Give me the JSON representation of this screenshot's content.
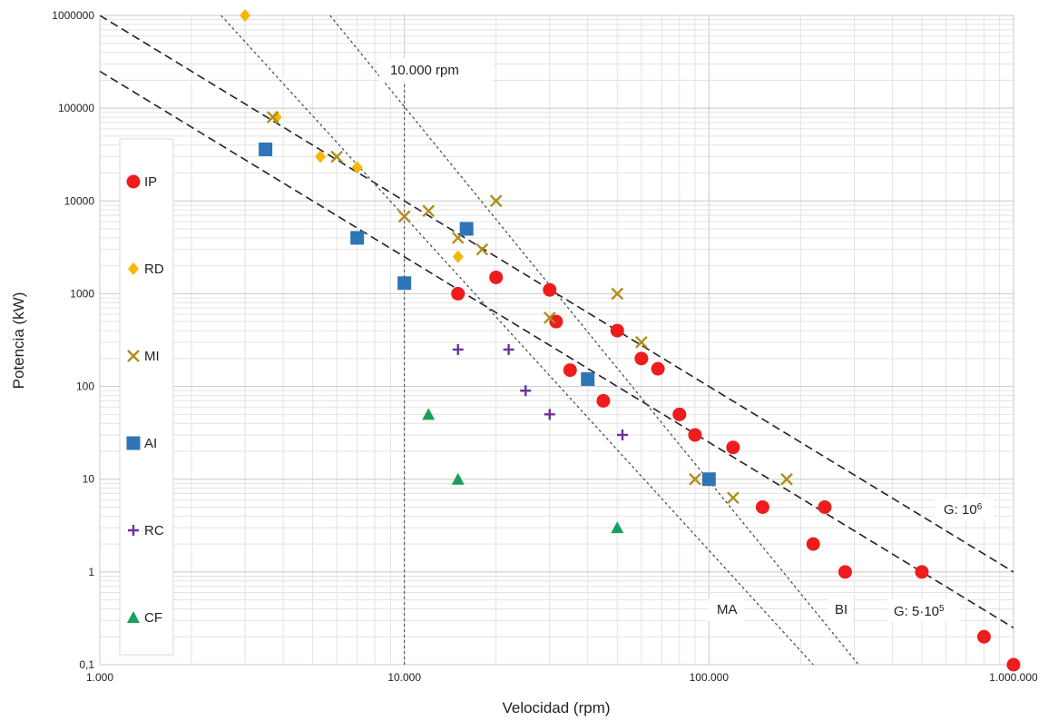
{
  "chart_data": {
    "type": "scatter",
    "x_scale": "log",
    "y_scale": "log",
    "xlabel": "Velocidad (rpm)",
    "ylabel": "Potencia (kW)",
    "xlim": [
      1000,
      1000000
    ],
    "ylim": [
      0.1,
      1000000
    ],
    "x_ticks": [
      {
        "value": 1000,
        "label": "1.000"
      },
      {
        "value": 10000,
        "label": "10.000"
      },
      {
        "value": 100000,
        "label": "100.000"
      },
      {
        "value": 1000000,
        "label": "1.000.000"
      }
    ],
    "y_ticks": [
      {
        "value": 0.1,
        "label": "0,1"
      },
      {
        "value": 1,
        "label": "1"
      },
      {
        "value": 10,
        "label": "10"
      },
      {
        "value": 100,
        "label": "100"
      },
      {
        "value": 1000,
        "label": "1000"
      },
      {
        "value": 10000,
        "label": "10000"
      },
      {
        "value": 100000,
        "label": "100000"
      },
      {
        "value": 1000000,
        "label": "1000000"
      }
    ],
    "grid": true,
    "legend_position": "left",
    "series": [
      {
        "name": "IP",
        "marker": "circle",
        "color": "#ee1c1c",
        "points": [
          [
            15000,
            1000
          ],
          [
            20000,
            1500
          ],
          [
            30000,
            1100
          ],
          [
            31500,
            500
          ],
          [
            35000,
            150
          ],
          [
            45000,
            70
          ],
          [
            50000,
            400
          ],
          [
            60000,
            200
          ],
          [
            68000,
            155
          ],
          [
            80000,
            50
          ],
          [
            90000,
            30
          ],
          [
            120000,
            22
          ],
          [
            150000,
            5
          ],
          [
            220000,
            2
          ],
          [
            240000,
            5
          ],
          [
            280000,
            1
          ],
          [
            500000,
            1
          ],
          [
            800000,
            0.2
          ],
          [
            1000000,
            0.1
          ]
        ]
      },
      {
        "name": "RD",
        "marker": "diamond",
        "color": "#f5b700",
        "points": [
          [
            3000,
            1000000
          ],
          [
            3800,
            80000
          ],
          [
            5300,
            30000
          ],
          [
            7000,
            23000
          ],
          [
            15000,
            2500
          ]
        ]
      },
      {
        "name": "MI",
        "marker": "x",
        "color": "#b08d1c",
        "points": [
          [
            3700,
            80000
          ],
          [
            6000,
            30000
          ],
          [
            10000,
            6800
          ],
          [
            12000,
            7800
          ],
          [
            15000,
            4000
          ],
          [
            18000,
            3000
          ],
          [
            20000,
            10000
          ],
          [
            30000,
            550
          ],
          [
            50000,
            1000
          ],
          [
            60000,
            300
          ],
          [
            90000,
            10
          ],
          [
            120000,
            6.3
          ],
          [
            180000,
            10
          ]
        ]
      },
      {
        "name": "AI",
        "marker": "square",
        "color": "#2e75b6",
        "points": [
          [
            3500,
            36000
          ],
          [
            7000,
            4000
          ],
          [
            10000,
            1300
          ],
          [
            16000,
            5000
          ],
          [
            40000,
            120
          ],
          [
            100000,
            10
          ]
        ]
      },
      {
        "name": "RC",
        "marker": "plus",
        "color": "#7030a0",
        "points": [
          [
            15000,
            250
          ],
          [
            22000,
            250
          ],
          [
            25000,
            90
          ],
          [
            30000,
            50
          ],
          [
            52000,
            30
          ]
        ]
      },
      {
        "name": "CF",
        "marker": "triangle",
        "color": "#1aa05a",
        "points": [
          [
            12000,
            50
          ],
          [
            15000,
            10
          ],
          [
            50000,
            3
          ]
        ]
      }
    ],
    "reference_lines": [
      {
        "label": "G: 10",
        "label_sup": "6",
        "style": "dashed",
        "points": [
          [
            1000,
            1000000
          ],
          [
            1000000,
            1
          ]
        ]
      },
      {
        "label": "G: 5·10",
        "label_sup": "5",
        "style": "dashed",
        "points": [
          [
            1000,
            250000
          ],
          [
            1000000,
            0.25
          ]
        ]
      },
      {
        "label": "MA",
        "style": "dotted",
        "points": [
          [
            2500,
            1000000
          ],
          [
            220000,
            0.1
          ]
        ]
      },
      {
        "label": "BI",
        "style": "dotted",
        "points": [
          [
            5700,
            1000000
          ],
          [
            310000,
            0.1
          ]
        ]
      },
      {
        "label": "",
        "style": "dotted",
        "points": [
          [
            10000,
            1000000
          ],
          [
            1000,
            1000000000
          ]
        ]
      },
      {
        "label": "10.000 rpm",
        "style": "dotted-vertical",
        "points": [
          [
            10000,
            0.1
          ],
          [
            10000,
            250000
          ]
        ]
      }
    ]
  }
}
